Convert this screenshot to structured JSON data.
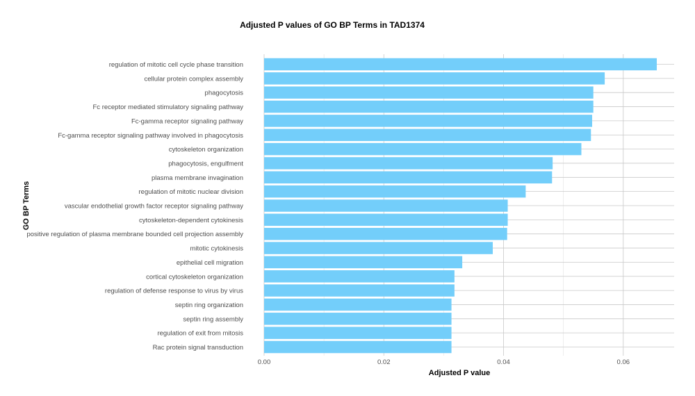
{
  "chart_data": {
    "type": "bar",
    "orientation": "horizontal",
    "title": "Adjusted P values of GO BP Terms in TAD1374",
    "xlabel": "Adjusted P value",
    "ylabel": "GO BP Terms",
    "xlim": [
      0,
      0.0685
    ],
    "xticks": [
      0.0,
      0.02,
      0.04,
      0.06
    ],
    "xtick_labels": [
      "0.00",
      "0.02",
      "0.04",
      "0.06"
    ],
    "grid": true,
    "bar_color": "#73CEFA",
    "categories": [
      "regulation of mitotic cell cycle phase transition",
      "cellular protein complex assembly",
      "phagocytosis",
      "Fc receptor mediated stimulatory signaling pathway",
      "Fc-gamma receptor signaling pathway",
      "Fc-gamma receptor signaling pathway involved in phagocytosis",
      "cytoskeleton organization",
      "phagocytosis, engulfment",
      "plasma membrane invagination",
      "regulation of mitotic nuclear division",
      "vascular endothelial growth factor receptor signaling pathway",
      "cytoskeleton-dependent cytokinesis",
      "positive regulation of plasma membrane bounded cell projection assembly",
      "mitotic cytokinesis",
      "epithelial cell migration",
      "cortical cytoskeleton organization",
      "regulation of defense response to virus by virus",
      "septin ring organization",
      "septin ring assembly",
      "regulation of exit from mitosis",
      "Rac protein signal transduction"
    ],
    "values": [
      0.0656,
      0.0569,
      0.055,
      0.055,
      0.0548,
      0.0546,
      0.053,
      0.0482,
      0.0481,
      0.0437,
      0.0407,
      0.0407,
      0.0406,
      0.0382,
      0.0331,
      0.0318,
      0.0318,
      0.0313,
      0.0313,
      0.0313,
      0.0313
    ]
  }
}
